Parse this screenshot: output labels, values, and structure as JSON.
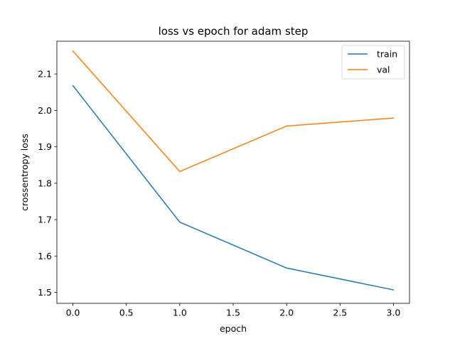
{
  "chart_data": {
    "type": "line",
    "title": "loss vs epoch for adam step",
    "xlabel": "epoch",
    "ylabel": "crossentropy loss",
    "xlim": [
      -0.15,
      3.15
    ],
    "ylim": [
      1.47,
      2.19
    ],
    "xticks": [
      0.0,
      0.5,
      1.0,
      1.5,
      2.0,
      2.5,
      3.0
    ],
    "xtick_labels": [
      "0.0",
      "0.5",
      "1.0",
      "1.5",
      "2.0",
      "2.5",
      "3.0"
    ],
    "yticks": [
      1.5,
      1.6,
      1.7,
      1.8,
      1.9,
      2.0,
      2.1
    ],
    "ytick_labels": [
      "1.5",
      "1.6",
      "1.7",
      "1.8",
      "1.9",
      "2.0",
      "2.1"
    ],
    "grid": false,
    "legend_position": "top-right",
    "x": [
      0,
      1,
      2,
      3
    ],
    "series": [
      {
        "name": "train",
        "color": "#1f77b4",
        "values": [
          2.068,
          1.693,
          1.567,
          1.507
        ]
      },
      {
        "name": "val",
        "color": "#ff7f0e",
        "values": [
          2.163,
          1.832,
          1.957,
          1.979
        ]
      }
    ]
  }
}
